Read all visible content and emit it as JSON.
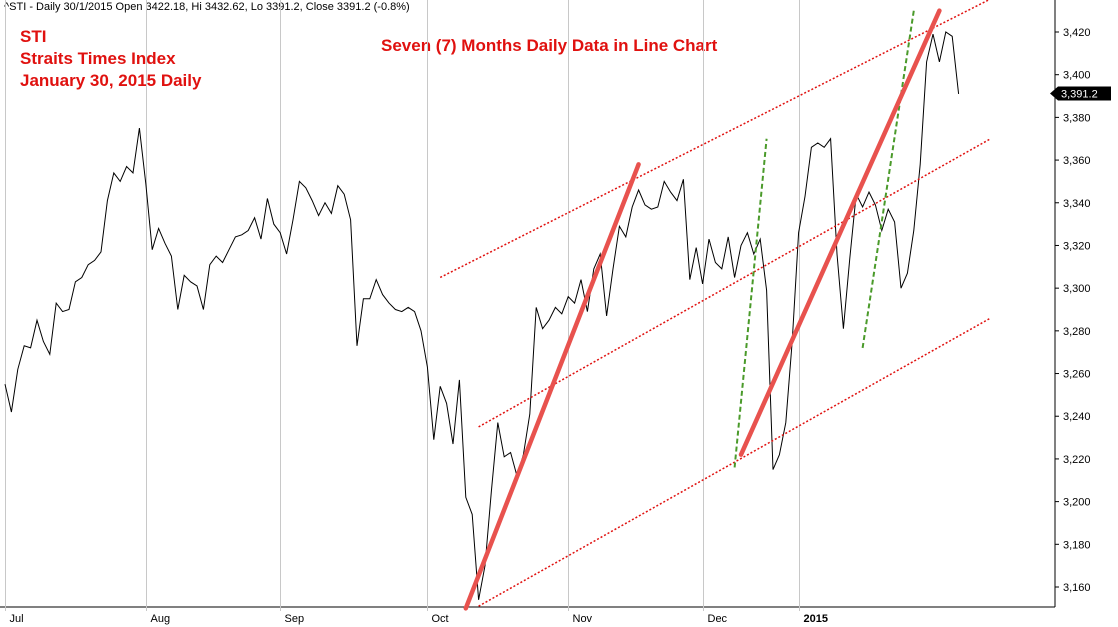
{
  "header": {
    "info": "^STI - Daily 30/1/2015 Open 3422.18, Hi 3432.62, Lo 3391.2, Close 3391.2 (-0.8%)"
  },
  "titles": {
    "line1": "STI",
    "line2": "Straits Times Index",
    "line3": "January 30, 2015 Daily",
    "center": "Seven (7) Months Daily Data in Line Chart"
  },
  "colors": {
    "price_line": "#000000",
    "trend_red": "#e8524e",
    "channel_red": "#e0110f",
    "trend_green": "#4a9a2a",
    "title_red": "#e0110f"
  },
  "chart_data": {
    "type": "line",
    "series": [
      {
        "values": [
          3255,
          3242,
          3262,
          3273,
          3272,
          3285,
          3275,
          3269,
          3293,
          3289,
          3290,
          3303,
          3305,
          3311,
          3313,
          3317,
          3341,
          3354,
          3350,
          3357,
          3354,
          3375,
          3349,
          3318,
          3328,
          3321,
          3315,
          3290,
          3306,
          3303,
          3301,
          3290,
          3311,
          3315,
          3312,
          3318,
          3324,
          3325,
          3327,
          3333,
          3323,
          3342,
          3330,
          3326,
          3316,
          3332,
          3350,
          3347,
          3341,
          3334,
          3340,
          3335,
          3348,
          3344,
          3332,
          3273,
          3295,
          3295,
          3304,
          3297,
          3293,
          3290,
          3289,
          3291,
          3289,
          3280,
          3263,
          3229,
          3254,
          3246,
          3227,
          3257,
          3202,
          3194,
          3154,
          3170,
          3205,
          3237,
          3221,
          3223,
          3212,
          3222,
          3241,
          3291,
          3281,
          3285,
          3291,
          3288,
          3296,
          3293,
          3304,
          3289,
          3309,
          3316,
          3287,
          3309,
          3329,
          3324,
          3338,
          3346,
          3339,
          3337,
          3338,
          3350,
          3345,
          3341,
          3351,
          3304,
          3319,
          3302,
          3323,
          3312,
          3309,
          3324,
          3305,
          3320,
          3326,
          3316,
          3323,
          3299,
          3215,
          3222,
          3237,
          3275,
          3326,
          3343,
          3366,
          3368,
          3366,
          3370,
          3316,
          3281,
          3314,
          3344,
          3338,
          3345,
          3339,
          3327,
          3337,
          3331,
          3300,
          3307,
          3327,
          3358,
          3406,
          3419,
          3406,
          3420,
          3418,
          3391
        ]
      }
    ],
    "x_tick_labels": [
      "Jul",
      "Aug",
      "Sep",
      "Oct",
      "Nov",
      "Dec",
      "2015"
    ],
    "x_tick_index": [
      0,
      22,
      43,
      66,
      88,
      109,
      124
    ],
    "ylim": [
      3145,
      3435
    ],
    "y_ticks": [
      3160,
      3180,
      3200,
      3220,
      3240,
      3260,
      3280,
      3300,
      3320,
      3340,
      3360,
      3380,
      3400,
      3420
    ],
    "y_tick_labels": [
      "3,160",
      "3,180",
      "3,200",
      "3,220",
      "3,240",
      "3,260",
      "3,280",
      "3,300",
      "3,320",
      "3,340",
      "3,360",
      "3,380",
      "3,400",
      "3,420"
    ],
    "last_value_label": "3,391.2",
    "last_value": 3391.2,
    "annotations": {
      "trend_lines": [
        {
          "style": "solid-red",
          "from": [
            72,
            3150
          ],
          "to": [
            99,
            3358
          ]
        },
        {
          "style": "solid-red",
          "from": [
            115,
            3222
          ],
          "to": [
            146,
            3430
          ]
        }
      ],
      "channel_lines": [
        {
          "style": "dotted-red",
          "from": [
            68,
            3305
          ],
          "to": [
            155,
            3437
          ]
        },
        {
          "style": "dotted-red",
          "from": [
            74,
            3235
          ],
          "to": [
            154,
            3370
          ]
        },
        {
          "style": "dotted-red",
          "from": [
            74,
            3151
          ],
          "to": [
            154,
            3286
          ]
        }
      ],
      "green_lines": [
        {
          "style": "dashed-green",
          "from": [
            114,
            3216
          ],
          "to": [
            119,
            3370
          ]
        },
        {
          "style": "dashed-green",
          "from": [
            134,
            3272
          ],
          "to": [
            142,
            3430
          ]
        }
      ]
    },
    "grid": false
  }
}
